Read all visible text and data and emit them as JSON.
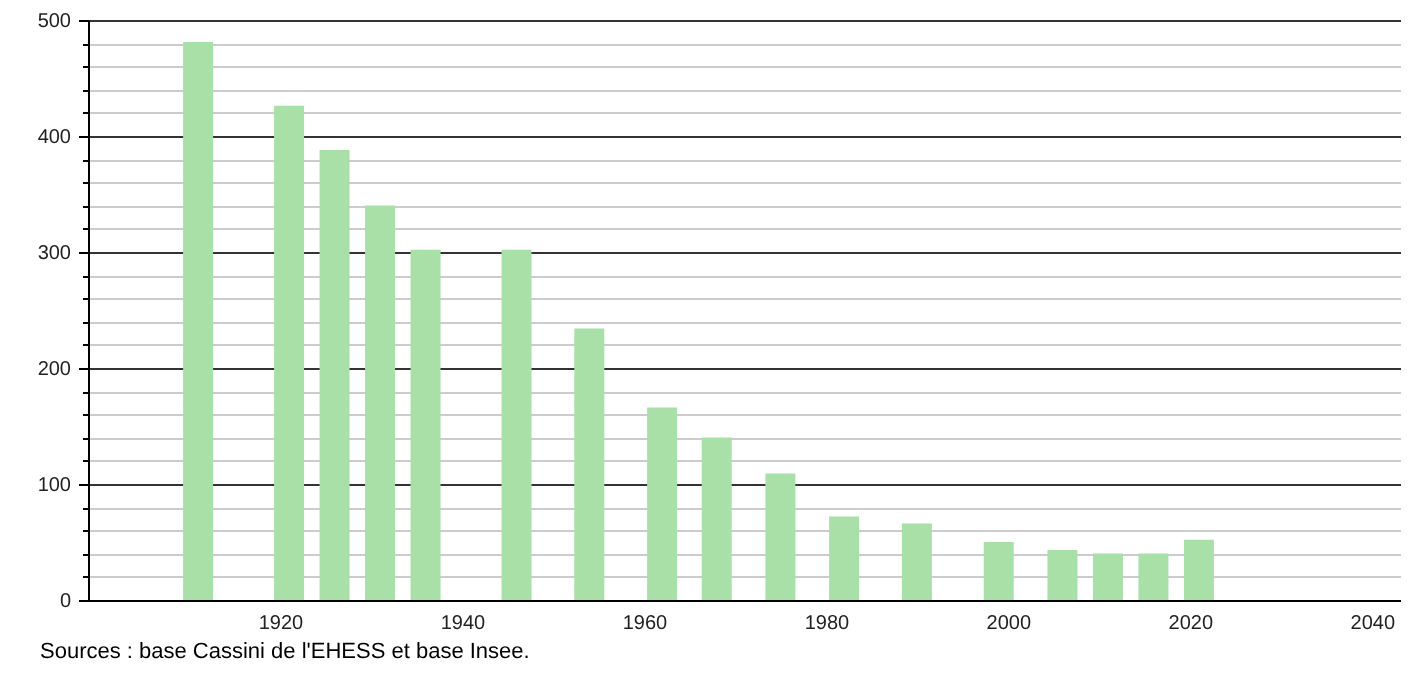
{
  "chart_data": {
    "type": "bar",
    "x": [
      1911,
      1921,
      1926,
      1931,
      1936,
      1946,
      1954,
      1962,
      1968,
      1975,
      1982,
      1990,
      1999,
      2006,
      2011,
      2016,
      2021
    ],
    "values": [
      481,
      426,
      388,
      340,
      302,
      302,
      234,
      166,
      140,
      109,
      72,
      66,
      50,
      43,
      40,
      40,
      52
    ],
    "color": "#a8e0a8",
    "xlim": [
      1900,
      2042
    ],
    "xticks": [
      1920,
      1940,
      1960,
      1980,
      2000,
      2020,
      2040
    ],
    "ylim": [
      0,
      500
    ],
    "yticks": [
      0,
      {
        "value": 20,
        "label": null
      },
      {
        "value": 40,
        "label": null
      },
      {
        "value": 60,
        "label": null
      },
      {
        "value": 80,
        "label": null
      },
      100,
      {
        "value": 120,
        "label": null
      },
      {
        "value": 140,
        "label": null
      },
      {
        "value": 160,
        "label": null
      },
      {
        "value": 180,
        "label": null
      },
      200,
      {
        "value": 220,
        "label": null
      },
      {
        "value": 240,
        "label": null
      },
      {
        "value": 260,
        "label": null
      },
      {
        "value": 280,
        "label": null
      },
      300,
      {
        "value": 320,
        "label": null
      },
      {
        "value": 340,
        "label": null
      },
      {
        "value": 360,
        "label": null
      },
      {
        "value": 380,
        "label": null
      },
      400,
      {
        "value": 420,
        "label": null
      },
      {
        "value": 440,
        "label": null
      },
      {
        "value": 460,
        "label": null
      },
      {
        "value": 480,
        "label": null
      },
      500
    ],
    "grid": "y",
    "annotations": [
      "Sources : base Cassini de l'EHESS et base Insee."
    ]
  }
}
